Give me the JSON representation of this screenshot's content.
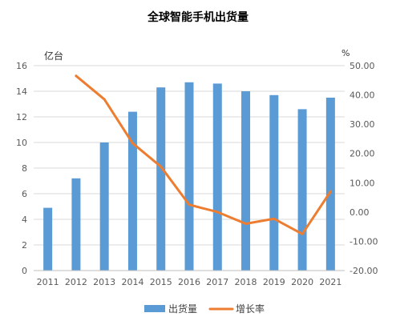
{
  "chart_data": {
    "type": "bar",
    "title": "全球智能手机出货量",
    "categories": [
      "2011",
      "2012",
      "2013",
      "2014",
      "2015",
      "2016",
      "2017",
      "2018",
      "2019",
      "2020",
      "2021"
    ],
    "y_left": {
      "unit_label": "亿台",
      "range": [
        0,
        16
      ],
      "ticks": [
        "0",
        "2",
        "4",
        "6",
        "8",
        "10",
        "12",
        "14",
        "16"
      ]
    },
    "y_right": {
      "unit_label": "%",
      "range": [
        -20,
        50
      ],
      "ticks": [
        "-20.00",
        "-10.00",
        "0.00",
        "10.00",
        "20.00",
        "30.00",
        "40.00",
        "50.00"
      ]
    },
    "grid": true,
    "legend_position": "bottom",
    "series": [
      {
        "name": "出货量",
        "type": "bar",
        "axis": "left",
        "color": "#5B9BD5",
        "values": [
          4.9,
          7.2,
          10.0,
          12.4,
          14.3,
          14.7,
          14.6,
          14.0,
          13.7,
          12.6,
          13.5
        ]
      },
      {
        "name": "增长率",
        "type": "line",
        "axis": "right",
        "color": "#ED7D31",
        "values": [
          null,
          46.5,
          38.5,
          23.5,
          15.5,
          2.5,
          0.0,
          -4.0,
          -2.3,
          -7.5,
          7.0
        ]
      }
    ]
  }
}
